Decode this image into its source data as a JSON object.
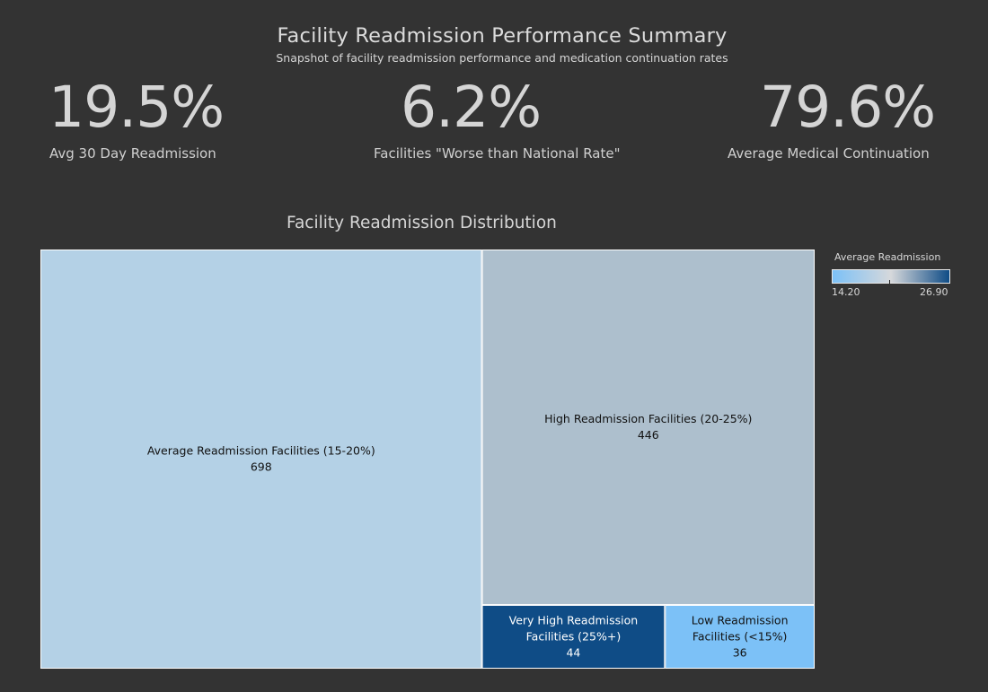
{
  "header": {
    "title": "Facility Readmission Performance Summary",
    "subtitle": "Snapshot of facility readmission performance and medication continuation rates"
  },
  "kpis": [
    {
      "value": "19.5%",
      "label": "Avg 30 Day Readmission"
    },
    {
      "value": "6.2%",
      "label": "Facilities \"Worse than  National Rate\""
    },
    {
      "value": "79.6%",
      "label": "Average Medical Continuation"
    }
  ],
  "chart_title": "Facility Readmission Distribution",
  "legend": {
    "title": "Average Readmission",
    "min": "14.20",
    "max": "26.90",
    "colors": [
      "#7cc1f7",
      "#d6d8db",
      "#0f4c86"
    ]
  },
  "chart_data": {
    "type": "treemap",
    "title": "Facility Readmission Distribution",
    "color_measure": "Average Readmission",
    "color_range": [
      14.2,
      26.9
    ],
    "items": [
      {
        "label": "Average Readmission Facilities (15-20%)",
        "value": 698,
        "color": "#b4d1e6"
      },
      {
        "label": "High Readmission Facilities (20-25%)",
        "value": 446,
        "color": "#adbfcd"
      },
      {
        "label": "Very High Readmission Facilities (25%+)",
        "value": 44,
        "color": "#0f4c86"
      },
      {
        "label": "Low Readmission Facilities (<15%)",
        "value": 36,
        "color": "#7cc1f7"
      }
    ]
  }
}
